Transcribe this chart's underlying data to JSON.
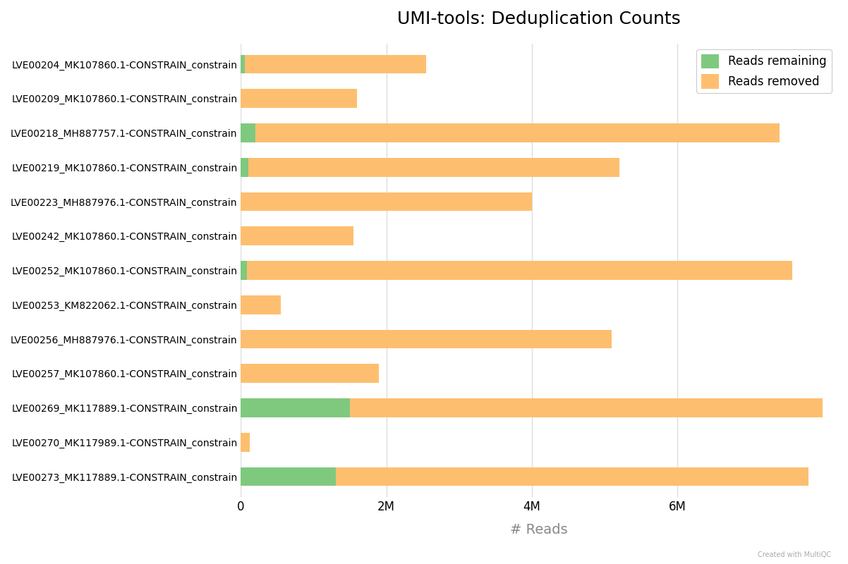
{
  "title": "UMI-tools: Deduplication Counts",
  "xlabel": "# Reads",
  "categories": [
    "LVE00204_MK107860.1-CONSTRAIN_constrain",
    "LVE00209_MK107860.1-CONSTRAIN_constrain",
    "LVE00218_MH887757.1-CONSTRAIN_constrain",
    "LVE00219_MK107860.1-CONSTRAIN_constrain",
    "LVE00223_MH887976.1-CONSTRAIN_constrain",
    "LVE00242_MK107860.1-CONSTRAIN_constrain",
    "LVE00252_MK107860.1-CONSTRAIN_constrain",
    "LVE00253_KM822062.1-CONSTRAIN_constrain",
    "LVE00256_MH887976.1-CONSTRAIN_constrain",
    "LVE00257_MK107860.1-CONSTRAIN_constrain",
    "LVE00269_MK117889.1-CONSTRAIN_constrain",
    "LVE00270_MK117989.1-CONSTRAIN_constrain",
    "LVE00273_MK117889.1-CONSTRAIN_constrain"
  ],
  "reads_remaining": [
    50000,
    0,
    200000,
    100000,
    0,
    0,
    80000,
    0,
    0,
    0,
    1500000,
    0,
    1300000
  ],
  "reads_removed": [
    2500000,
    1600000,
    7200000,
    5100000,
    4000000,
    1550000,
    7500000,
    550000,
    5100000,
    1900000,
    6500000,
    120000,
    6500000
  ],
  "color_remaining": "#7fc97f",
  "color_removed": "#fdbf6f",
  "background_color": "#ffffff",
  "plot_background": "#ffffff",
  "legend_remaining": "Reads remaining",
  "legend_removed": "Reads removed",
  "xlim": [
    0,
    8200000
  ],
  "xtick_values": [
    0,
    2000000,
    4000000,
    6000000
  ],
  "xtick_labels": [
    "0",
    "2M",
    "4M",
    "6M"
  ],
  "grid_color": "#dddddd",
  "bar_height": 0.55,
  "title_fontsize": 18,
  "axis_fontsize": 12,
  "label_fontsize": 10,
  "watermark": "Created with MultiQC"
}
